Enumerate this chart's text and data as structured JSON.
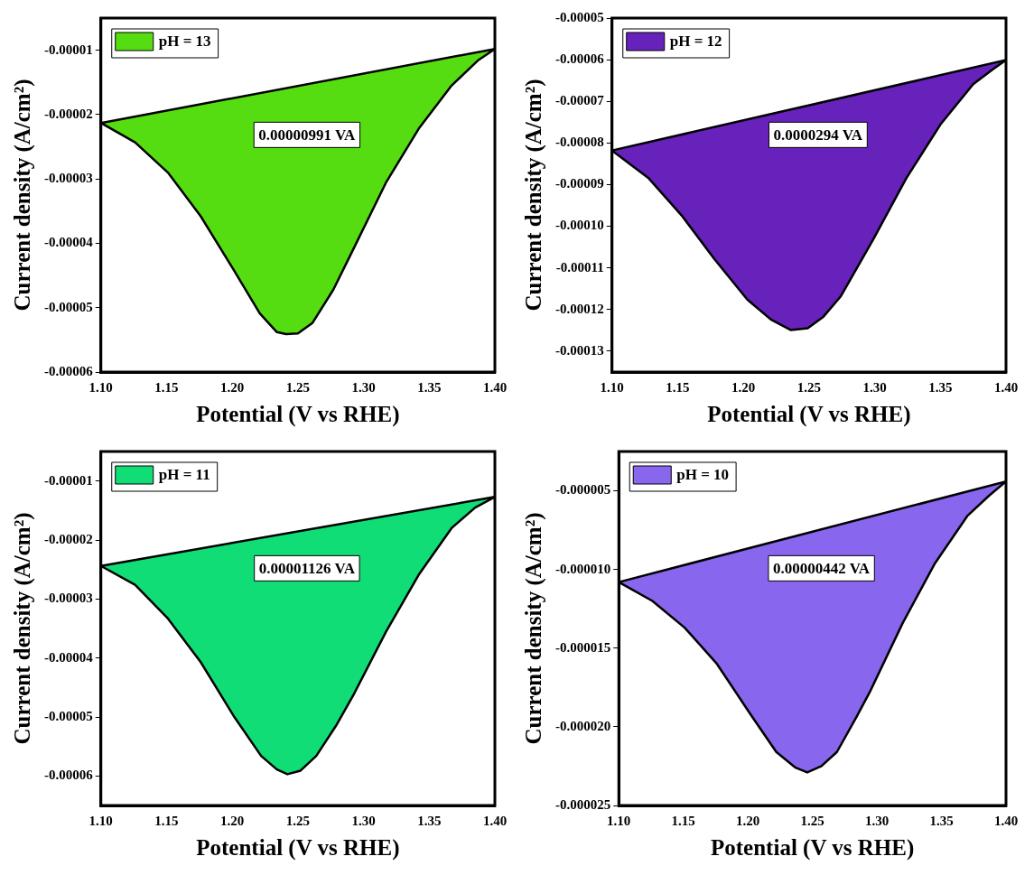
{
  "chart_data": [
    {
      "type": "area",
      "xlabel": "Potential (V vs RHE)",
      "ylabel": "Current density (A/cm²)",
      "legend": "top left",
      "annotations": [
        "0.00000991 VA"
      ],
      "xlim": [
        1.1,
        1.4
      ],
      "xticks": [
        {
          "value": 1.1,
          "label": "1.10"
        },
        {
          "value": 1.15,
          "label": "1.15"
        },
        {
          "value": 1.2,
          "label": "1.20"
        },
        {
          "value": 1.25,
          "label": "1.25"
        },
        {
          "value": 1.3,
          "label": "1.30"
        },
        {
          "value": 1.35,
          "label": "1.35"
        },
        {
          "value": 1.4,
          "label": "1.40"
        }
      ],
      "ylim": [
        -6e-05,
        -5e-06
      ],
      "yticks": [
        {
          "value": -6e-05,
          "label": "-0.00006"
        },
        {
          "value": -5e-05,
          "label": "-0.00005"
        },
        {
          "value": -4e-05,
          "label": "-0.00004"
        },
        {
          "value": -3e-05,
          "label": "-0.00003"
        },
        {
          "value": -2e-05,
          "label": "-0.00002"
        },
        {
          "value": -1e-05,
          "label": "-0.00001"
        }
      ],
      "series": [
        {
          "name": "pH = 13",
          "color": "#55dd11",
          "x": [
            1.1,
            1.126,
            1.151,
            1.176,
            1.201,
            1.221,
            1.234,
            1.241,
            1.25,
            1.261,
            1.277,
            1.292,
            1.317,
            1.342,
            1.367,
            1.387,
            1.4,
            1.1
          ],
          "values": [
            -2.13e-05,
            -2.43e-05,
            -2.9e-05,
            -3.58e-05,
            -4.41e-05,
            -5.09e-05,
            -5.38e-05,
            -5.41e-05,
            -5.4e-05,
            -5.24e-05,
            -4.72e-05,
            -4.1e-05,
            -3.06e-05,
            -2.22e-05,
            -1.55e-05,
            -1.16e-05,
            -9.8e-06,
            -2.13e-05
          ]
        }
      ]
    },
    {
      "type": "area",
      "xlabel": "Potential (V vs RHE)",
      "ylabel": "Current density (A/cm²)",
      "legend": "top left",
      "annotations": [
        "0.0000294 VA"
      ],
      "xlim": [
        1.1,
        1.4
      ],
      "xticks": [
        {
          "value": 1.1,
          "label": "1.10"
        },
        {
          "value": 1.15,
          "label": "1.15"
        },
        {
          "value": 1.2,
          "label": "1.20"
        },
        {
          "value": 1.25,
          "label": "1.25"
        },
        {
          "value": 1.3,
          "label": "1.30"
        },
        {
          "value": 1.35,
          "label": "1.35"
        },
        {
          "value": 1.4,
          "label": "1.40"
        }
      ],
      "ylim": [
        -0.000135,
        -5e-05
      ],
      "yticks": [
        {
          "value": -0.00013,
          "label": "-0.00013"
        },
        {
          "value": -0.00012,
          "label": "-0.00012"
        },
        {
          "value": -0.00011,
          "label": "-0.00011"
        },
        {
          "value": -0.0001,
          "label": "-0.00010"
        },
        {
          "value": -9e-05,
          "label": "-0.00009"
        },
        {
          "value": -8e-05,
          "label": "-0.00008"
        },
        {
          "value": -7e-05,
          "label": "-0.00007"
        },
        {
          "value": -6e-05,
          "label": "-0.00006"
        },
        {
          "value": -5e-05,
          "label": "-0.00005"
        }
      ],
      "series": [
        {
          "name": "pH = 12",
          "color": "#6622bb",
          "x": [
            1.1,
            1.128,
            1.153,
            1.178,
            1.203,
            1.221,
            1.236,
            1.249,
            1.261,
            1.274,
            1.299,
            1.324,
            1.35,
            1.375,
            1.39,
            1.4,
            1.1
          ],
          "values": [
            -8.18e-05,
            -8.85e-05,
            -9.74e-05,
            -0.0001079,
            -0.0001176,
            -0.0001224,
            -0.0001249,
            -0.0001245,
            -0.0001217,
            -0.0001169,
            -0.0001031,
            -8.85e-05,
            -7.56e-05,
            -6.59e-05,
            -6.23e-05,
            -6.01e-05,
            -8.18e-05
          ]
        }
      ]
    },
    {
      "type": "area",
      "xlabel": "Potential (V vs RHE)",
      "ylabel": "Current density (A/cm²)",
      "legend": "top left",
      "annotations": [
        "0.00001126 VA"
      ],
      "xlim": [
        1.1,
        1.4
      ],
      "xticks": [
        {
          "value": 1.1,
          "label": "1.10"
        },
        {
          "value": 1.15,
          "label": "1.15"
        },
        {
          "value": 1.2,
          "label": "1.20"
        },
        {
          "value": 1.25,
          "label": "1.25"
        },
        {
          "value": 1.3,
          "label": "1.30"
        },
        {
          "value": 1.35,
          "label": "1.35"
        },
        {
          "value": 1.4,
          "label": "1.40"
        }
      ],
      "ylim": [
        -6.5e-05,
        -5e-06
      ],
      "yticks": [
        {
          "value": -6e-05,
          "label": "-0.00006"
        },
        {
          "value": -5e-05,
          "label": "-0.00005"
        },
        {
          "value": -4e-05,
          "label": "-0.00004"
        },
        {
          "value": -3e-05,
          "label": "-0.00003"
        },
        {
          "value": -2e-05,
          "label": "-0.00002"
        },
        {
          "value": -1e-05,
          "label": "-0.00001"
        }
      ],
      "series": [
        {
          "name": "pH = 11",
          "color": "#11dd77",
          "x": [
            1.1,
            1.126,
            1.151,
            1.176,
            1.201,
            1.222,
            1.234,
            1.242,
            1.252,
            1.264,
            1.279,
            1.292,
            1.317,
            1.342,
            1.367,
            1.385,
            1.4,
            1.1
          ],
          "values": [
            -2.44e-05,
            -2.76e-05,
            -3.33e-05,
            -4.07e-05,
            -4.98e-05,
            -5.66e-05,
            -5.89e-05,
            -5.97e-05,
            -5.91e-05,
            -5.66e-05,
            -5.15e-05,
            -4.64e-05,
            -3.56e-05,
            -2.59e-05,
            -1.8e-05,
            -1.45e-05,
            -1.27e-05,
            -2.44e-05
          ]
        }
      ]
    },
    {
      "type": "area",
      "xlabel": "Potential (V vs RHE)",
      "ylabel": "Current density (A/cm²)",
      "legend": "top left",
      "annotations": [
        "0.00000442 VA"
      ],
      "xlim": [
        1.1,
        1.4
      ],
      "xticks": [
        {
          "value": 1.1,
          "label": "1.10"
        },
        {
          "value": 1.15,
          "label": "1.15"
        },
        {
          "value": 1.2,
          "label": "1.20"
        },
        {
          "value": 1.25,
          "label": "1.25"
        },
        {
          "value": 1.3,
          "label": "1.30"
        },
        {
          "value": 1.35,
          "label": "1.35"
        },
        {
          "value": 1.4,
          "label": "1.40"
        }
      ],
      "ylim": [
        -2.5e-05,
        -2.5e-06
      ],
      "yticks": [
        {
          "value": -2.5e-05,
          "label": "-0.000025"
        },
        {
          "value": -2e-05,
          "label": "-0.000020"
        },
        {
          "value": -1.5e-05,
          "label": "-0.000015"
        },
        {
          "value": -1e-05,
          "label": "-0.000010"
        },
        {
          "value": -5e-06,
          "label": "-0.000005"
        }
      ],
      "series": [
        {
          "name": "pH = 10",
          "color": "#8866ee",
          "x": [
            1.1,
            1.126,
            1.151,
            1.176,
            1.202,
            1.222,
            1.237,
            1.246,
            1.257,
            1.269,
            1.284,
            1.295,
            1.32,
            1.345,
            1.37,
            1.387,
            1.4,
            1.1
          ],
          "values": [
            -1.08e-05,
            -1.2e-05,
            -1.37e-05,
            -1.6e-05,
            -1.92e-05,
            -2.16e-05,
            -2.26e-05,
            -2.29e-05,
            -2.25e-05,
            -2.16e-05,
            -1.94e-05,
            -1.77e-05,
            -1.34e-05,
            -9.6e-06,
            -6.6e-06,
            -5.3e-06,
            -4.4e-06,
            -1.08e-05
          ]
        }
      ]
    }
  ]
}
